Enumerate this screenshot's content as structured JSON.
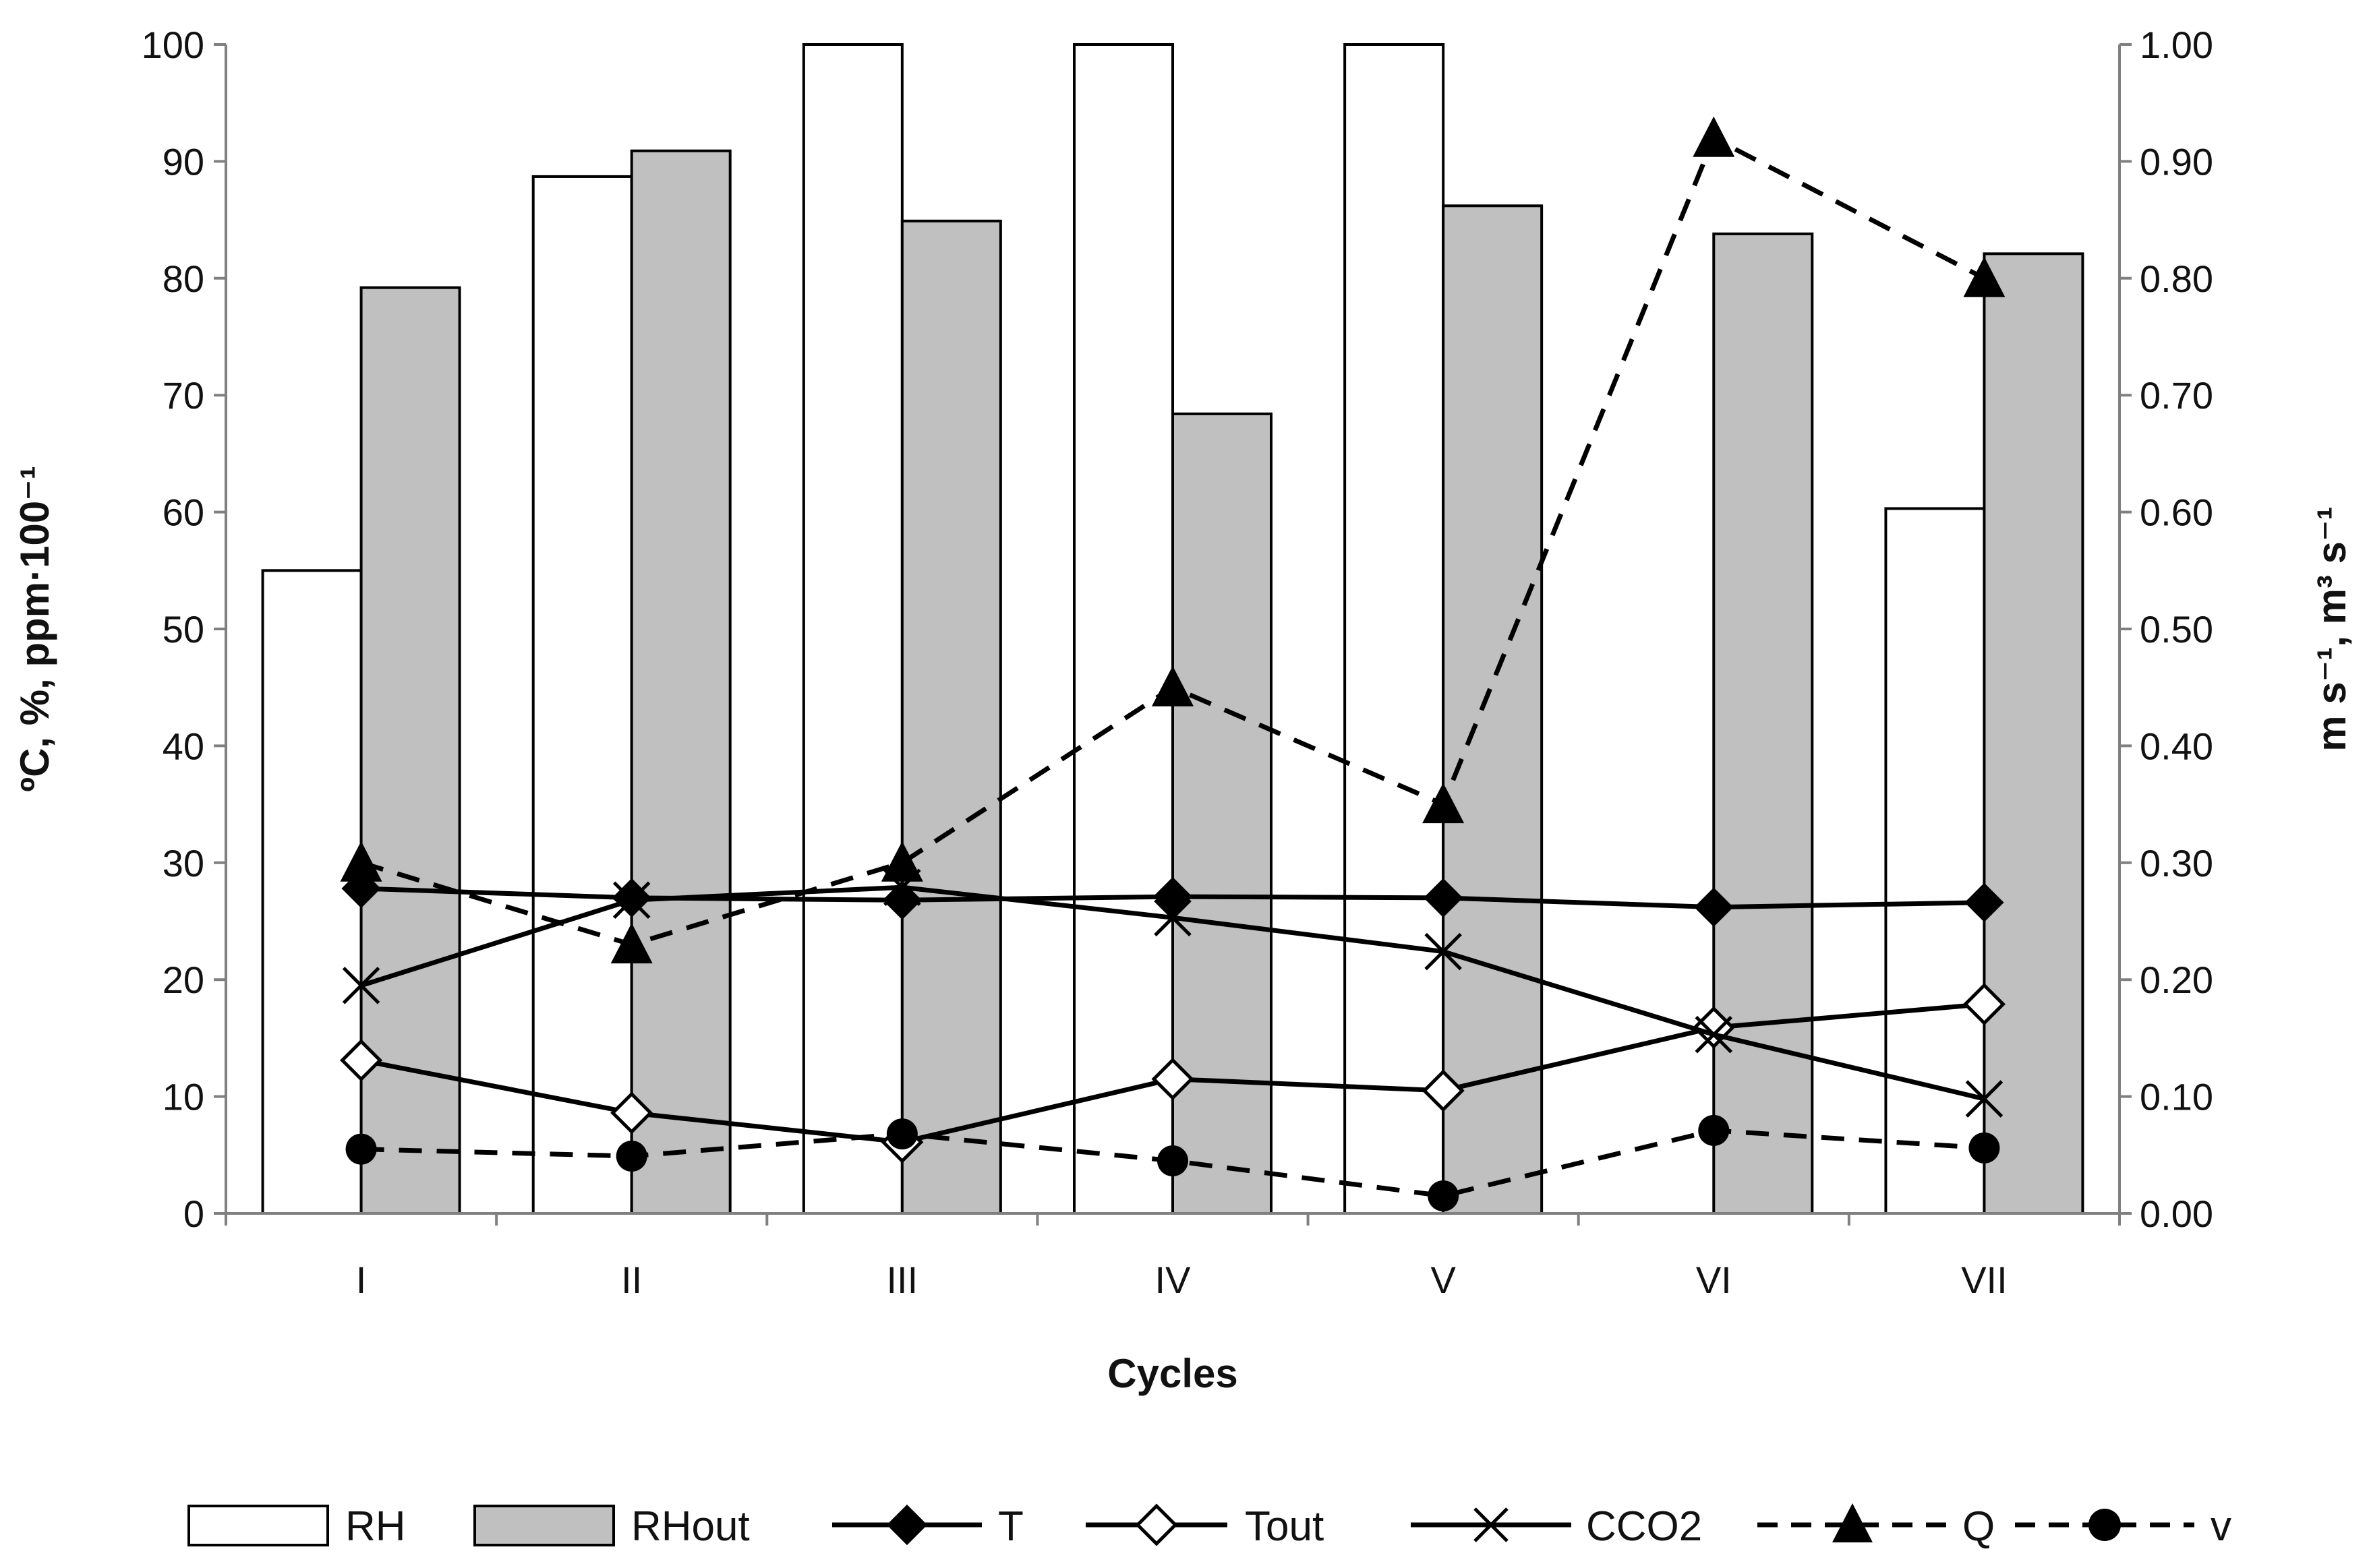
{
  "chart_data": {
    "type": "bar",
    "title": "",
    "xlabel": "Cycles",
    "ylabel": "ºC, %, ppm·100⁻¹",
    "ylabel_right": "m s⁻¹, m³ s⁻¹",
    "categories": [
      "I",
      "II",
      "III",
      "IV",
      "V",
      "VI",
      "VII"
    ],
    "ylim": [
      0,
      100
    ],
    "ylim_right": [
      0,
      1
    ],
    "yticks_left": [
      "0",
      "10",
      "20",
      "30",
      "40",
      "50",
      "60",
      "70",
      "80",
      "90",
      "100"
    ],
    "yticks_right": [
      "0.00",
      "0.10",
      "0.20",
      "0.30",
      "0.40",
      "0.50",
      "0.60",
      "0.70",
      "0.80",
      "0.90",
      "1.00"
    ],
    "legend_position": "bottom",
    "colors": {
      "rh_fill": "#ffffff",
      "rhout_fill": "#c0c0c0",
      "bar_stroke": "#000000",
      "line": "#000000",
      "axis": "#808080"
    },
    "series": [
      {
        "name": "RH",
        "kind": "bar",
        "axis": "left",
        "values": [
          55,
          88.7,
          100,
          100,
          100,
          0,
          60.3
        ]
      },
      {
        "name": "RHout",
        "kind": "bar",
        "axis": "left",
        "values": [
          79.2,
          90.9,
          84.9,
          68.4,
          86.2,
          83.8,
          82.1
        ]
      },
      {
        "name": "T",
        "kind": "line",
        "axis": "left",
        "marker": "filled-diamond",
        "dash": "solid",
        "values": [
          27.8,
          27.0,
          26.8,
          27.1,
          27.0,
          26.2,
          26.6
        ]
      },
      {
        "name": "Tout",
        "kind": "line",
        "axis": "left",
        "marker": "open-diamond",
        "dash": "solid",
        "values": [
          13.1,
          8.6,
          6.1,
          11.5,
          10.5,
          15.9,
          17.9
        ]
      },
      {
        "name": "CCO2",
        "kind": "line",
        "axis": "left",
        "marker": "x",
        "dash": "solid",
        "values": [
          19.5,
          26.8,
          27.9,
          25.3,
          22.4,
          15.3,
          9.8
        ]
      },
      {
        "name": "Q",
        "kind": "line",
        "axis": "right",
        "marker": "filled-triangle",
        "dash": "dashed",
        "values": [
          0.3,
          0.23,
          0.3,
          0.45,
          0.35,
          0.92,
          0.8
        ]
      },
      {
        "name": "v",
        "kind": "line",
        "axis": "right",
        "marker": "filled-circle",
        "dash": "dashed",
        "values": [
          0.055,
          0.049,
          0.068,
          0.045,
          0.015,
          0.071,
          0.056
        ]
      }
    ]
  }
}
